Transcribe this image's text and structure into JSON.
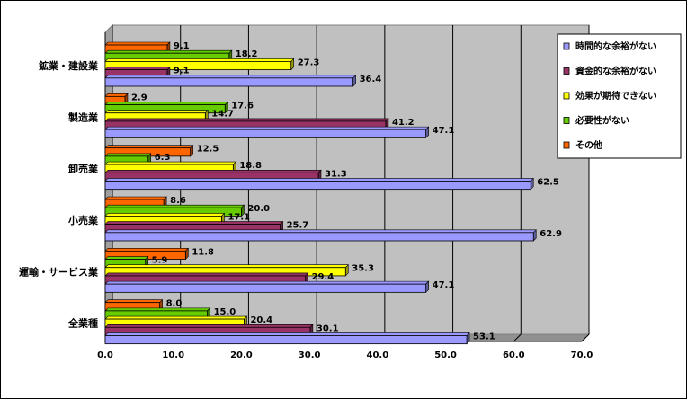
{
  "chart_data": {
    "type": "bar",
    "orientation": "horizontal",
    "title": "",
    "xlabel": "",
    "ylabel": "",
    "xlim": [
      0,
      70
    ],
    "x_ticks": [
      "0.0",
      "10.0",
      "20.0",
      "30.0",
      "40.0",
      "50.0",
      "60.0",
      "70.0"
    ],
    "grid": true,
    "legend_position": "top-right",
    "categories": [
      "鉱業・建設業",
      "製造業",
      "卸売業",
      "小売業",
      "運輸・サービス業",
      "全業種"
    ],
    "series": [
      {
        "name": "時間的な余裕がない",
        "color": "#9999ff",
        "values": [
          36.4,
          47.1,
          62.5,
          62.9,
          47.1,
          53.1
        ]
      },
      {
        "name": "資金的な余裕がない",
        "color": "#993366",
        "values": [
          9.1,
          41.2,
          31.3,
          25.7,
          29.4,
          30.1
        ]
      },
      {
        "name": "効果が期待できない",
        "color": "#ffff00",
        "values": [
          27.3,
          14.7,
          18.8,
          17.1,
          35.3,
          20.4
        ]
      },
      {
        "name": "必要性がない",
        "color": "#66cc00",
        "values": [
          18.2,
          17.6,
          6.3,
          20.0,
          5.9,
          15.0
        ]
      },
      {
        "name": "その他",
        "color": "#ff6600",
        "values": [
          9.1,
          2.9,
          12.5,
          8.6,
          11.8,
          8.0
        ]
      }
    ]
  }
}
